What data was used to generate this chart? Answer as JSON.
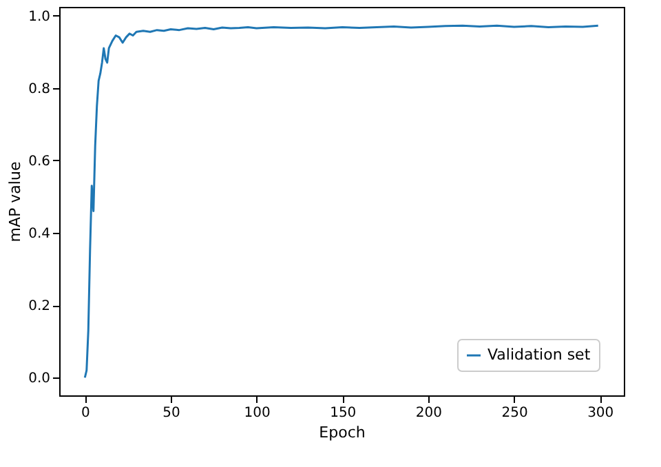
{
  "chart_data": {
    "type": "line",
    "xlabel": "Epoch",
    "ylabel": "mAP value",
    "x": [
      0,
      1,
      2,
      3,
      4,
      5,
      6,
      7,
      8,
      9,
      10,
      11,
      12,
      13,
      14,
      16,
      18,
      20,
      22,
      24,
      26,
      28,
      30,
      34,
      38,
      42,
      46,
      50,
      55,
      60,
      65,
      70,
      75,
      80,
      85,
      90,
      95,
      100,
      110,
      120,
      130,
      140,
      150,
      160,
      170,
      180,
      190,
      200,
      210,
      220,
      230,
      240,
      250,
      260,
      270,
      280,
      290,
      299
    ],
    "series": [
      {
        "name": "Validation set",
        "color": "#1f77b4",
        "values": [
          0.0,
          0.02,
          0.13,
          0.35,
          0.53,
          0.46,
          0.64,
          0.75,
          0.82,
          0.84,
          0.87,
          0.91,
          0.88,
          0.87,
          0.91,
          0.93,
          0.945,
          0.94,
          0.925,
          0.94,
          0.95,
          0.945,
          0.955,
          0.958,
          0.955,
          0.96,
          0.958,
          0.962,
          0.96,
          0.965,
          0.963,
          0.966,
          0.962,
          0.967,
          0.965,
          0.966,
          0.968,
          0.965,
          0.968,
          0.966,
          0.967,
          0.965,
          0.968,
          0.966,
          0.968,
          0.97,
          0.967,
          0.969,
          0.971,
          0.972,
          0.97,
          0.972,
          0.969,
          0.971,
          0.968,
          0.97,
          0.969,
          0.972
        ]
      }
    ],
    "xlim": [
      -14.95,
      313.95
    ],
    "ylim": [
      -0.049,
      1.024
    ],
    "xticks": [
      0,
      50,
      100,
      150,
      200,
      250,
      300
    ],
    "yticks": [
      {
        "value": 0,
        "label": "0.0"
      },
      {
        "value": 0.2,
        "label": "0.2"
      },
      {
        "value": 0.4,
        "label": "0.4"
      },
      {
        "value": 0.6,
        "label": "0.6"
      },
      {
        "value": 0.8,
        "label": "0.8"
      },
      {
        "value": 1.0,
        "label": "1.0"
      }
    ],
    "grid": false,
    "legend": "bottom right",
    "marker": "none",
    "line_style": "solid"
  }
}
